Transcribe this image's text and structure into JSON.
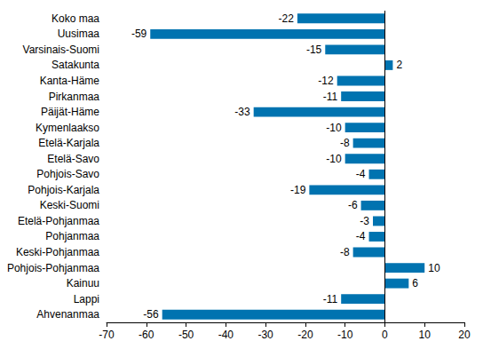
{
  "chart_data": {
    "type": "bar",
    "orientation": "horizontal",
    "categories": [
      "Koko maa",
      "Uusimaa",
      "Varsinais-Suomi",
      "Satakunta",
      "Kanta-Häme",
      "Pirkanmaa",
      "Päijät-Häme",
      "Kymenlaakso",
      "Etelä-Karjala",
      "Etelä-Savo",
      "Pohjois-Savo",
      "Pohjois-Karjala",
      "Keski-Suomi",
      "Etelä-Pohjanmaa",
      "Pohjanmaa",
      "Keski-Pohjanmaa",
      "Pohjois-Pohjanmaa",
      "Kainuu",
      "Lappi",
      "Ahvenanmaa"
    ],
    "values": [
      -22,
      -59,
      -15,
      2,
      -12,
      -11,
      -33,
      -10,
      -8,
      -10,
      -4,
      -19,
      -6,
      -3,
      -4,
      -8,
      10,
      6,
      -11,
      -56
    ],
    "color": "#0073b0",
    "xlim": [
      -70,
      20
    ],
    "xticks": [
      -70,
      -60,
      -50,
      -40,
      -30,
      -20,
      -10,
      0,
      10,
      20
    ],
    "grid": false,
    "data_labels": true
  }
}
